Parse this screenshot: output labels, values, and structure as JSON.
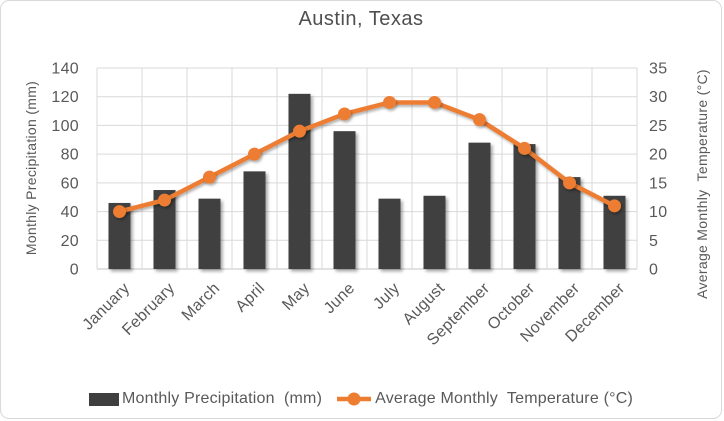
{
  "colors": {
    "bar": "#3F3F3F",
    "line": "#ED7D31",
    "grid": "#D9D9D9",
    "axis_line": "#C6C6C6",
    "axis_text": "#595959",
    "title_text": "#4F4F4F"
  },
  "chart_data": {
    "type": "combo-bar-line",
    "title": "Austin, Texas",
    "categories": [
      "January",
      "February",
      "March",
      "April",
      "May",
      "June",
      "July",
      "August",
      "September",
      "October",
      "November",
      "December"
    ],
    "series": [
      {
        "name": "Monthly Precipitation  (mm)",
        "type": "bar",
        "axis": "left",
        "values": [
          46,
          55,
          49,
          68,
          122,
          96,
          49,
          51,
          88,
          87,
          64,
          51
        ]
      },
      {
        "name": "Average Monthly  Temperature (°C)",
        "type": "line",
        "axis": "right",
        "values": [
          10,
          12,
          16,
          20,
          24,
          27,
          29,
          29,
          26,
          21,
          15,
          11
        ]
      }
    ],
    "left_axis": {
      "label": "Monthly Precipitation (mm)",
      "min": 0,
      "max": 140,
      "step": 20
    },
    "right_axis": {
      "label": "Average Monthly  Temperature (°C)",
      "min": 0,
      "max": 35,
      "step": 5
    },
    "grid": true,
    "legend_position": "bottom"
  }
}
